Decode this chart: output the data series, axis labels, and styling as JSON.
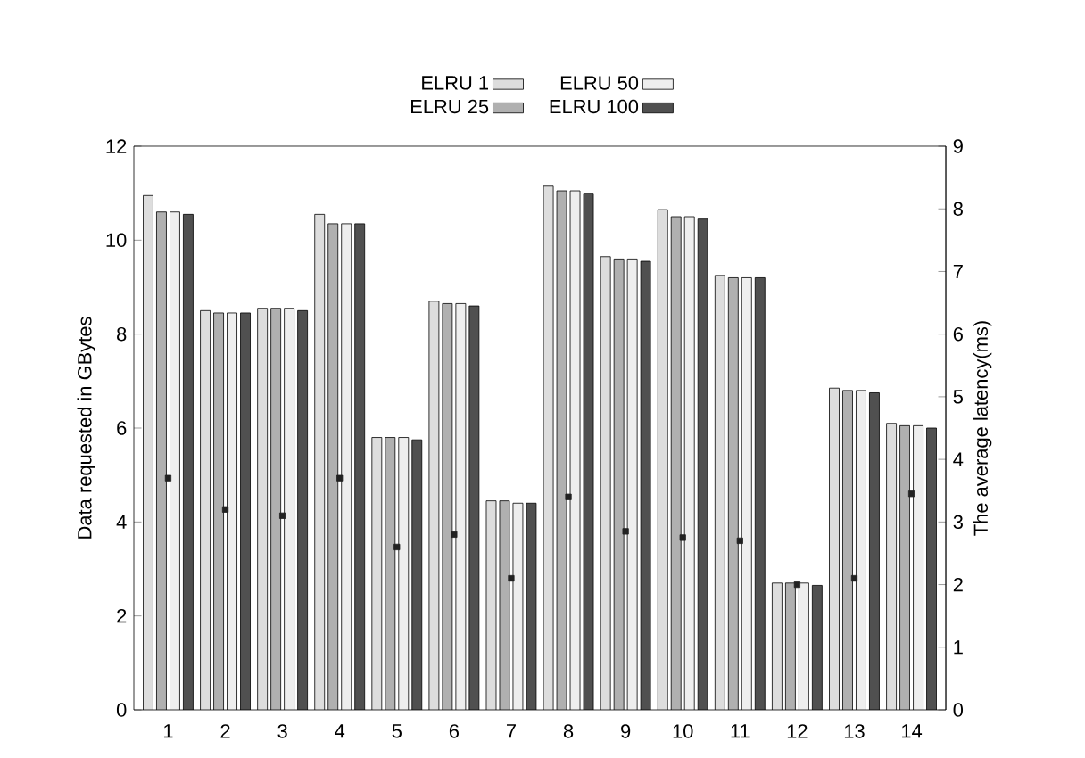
{
  "chart_data": {
    "type": "bar",
    "ylabel": "Data requested in GBytes",
    "y2label": "The average latency(ms)",
    "categories": [
      "1",
      "2",
      "3",
      "4",
      "5",
      "6",
      "7",
      "8",
      "9",
      "10",
      "11",
      "12",
      "13",
      "14"
    ],
    "series": [
      {
        "name": "ELRU 1",
        "color": "#dddddd",
        "values": [
          10.95,
          8.5,
          8.55,
          10.55,
          5.8,
          8.7,
          4.45,
          11.15,
          9.65,
          10.65,
          9.25,
          2.7,
          6.85,
          6.1
        ]
      },
      {
        "name": "ELRU 25",
        "color": "#b0b0b0",
        "values": [
          10.6,
          8.45,
          8.55,
          10.35,
          5.8,
          8.65,
          4.45,
          11.05,
          9.6,
          10.5,
          9.2,
          2.7,
          6.8,
          6.05
        ]
      },
      {
        "name": "ELRU 50",
        "color": "#eeeeee",
        "values": [
          10.6,
          8.45,
          8.55,
          10.35,
          5.8,
          8.65,
          4.4,
          11.05,
          9.6,
          10.5,
          9.2,
          2.7,
          6.8,
          6.05
        ]
      },
      {
        "name": "ELRU 100",
        "color": "#505050",
        "values": [
          10.55,
          8.45,
          8.5,
          10.35,
          5.75,
          8.6,
          4.4,
          11.0,
          9.55,
          10.45,
          9.2,
          2.65,
          6.75,
          6.0
        ]
      },
      {
        "type": "scatter",
        "axis": "y2",
        "color": "#222222",
        "values": [
          3.7,
          3.2,
          3.1,
          3.7,
          2.6,
          2.8,
          2.1,
          3.4,
          2.85,
          2.75,
          2.7,
          2.0,
          2.1,
          3.45
        ]
      }
    ],
    "ylim": [
      0,
      12
    ],
    "yticks": [
      0,
      2,
      4,
      6,
      8,
      10,
      12
    ],
    "y2lim": [
      0,
      9
    ],
    "y2ticks": [
      0,
      1,
      2,
      3,
      4,
      5,
      6,
      7,
      8,
      9
    ],
    "legend": "top",
    "grid": false
  }
}
